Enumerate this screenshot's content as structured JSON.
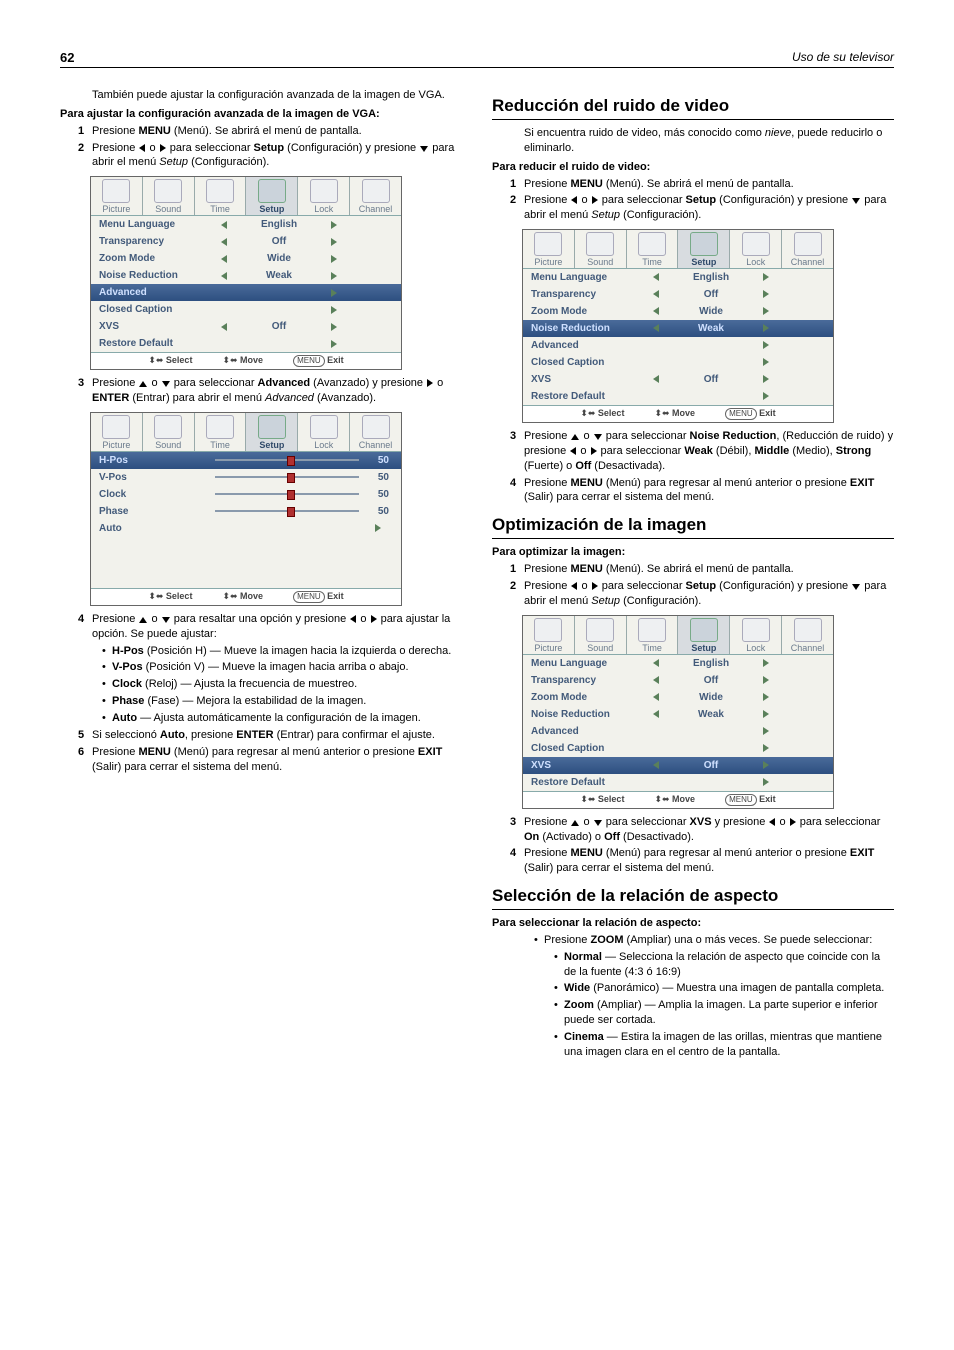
{
  "header": {
    "page_no": "62",
    "right": "Uso de su televisor"
  },
  "left": {
    "intro": "También puede ajustar la configuración avanzada de la imagen de VGA.",
    "sub": "Para ajustar la configuración avanzada de la imagen de VGA:",
    "s1": {
      "n": "1",
      "a": "Presione ",
      "b": "MENU",
      "c": " (Menú). Se abrirá el menú de pantalla."
    },
    "s2": {
      "n": "2",
      "a": "Presione ",
      "b": " o ",
      "c": " para seleccionar ",
      "d": "Setup",
      "e": " (Configuración) y presione ",
      "f": " para abrir el menú ",
      "g": "Setup",
      "h": " (Configuración)."
    },
    "s3": {
      "n": "3",
      "a": "Presione ",
      "b": " o ",
      "c": " para seleccionar ",
      "d": "Advanced",
      "e": " (Avanzado) y presione ",
      "f": " o ",
      "g": "ENTER",
      "h": " (Entrar) para abrir el menú ",
      "i": "Advanced",
      "j": " (Avanzado)."
    },
    "s4": {
      "n": "4",
      "a": "Presione ",
      "b": " o ",
      "c": " para resaltar una opción y presione ",
      "d": " o ",
      "e": " para ajustar la opción. Se puede ajustar:"
    },
    "b1": {
      "a": "H-Pos",
      "b": " (Posición H) — Mueve la imagen hacia la izquierda o derecha."
    },
    "b2": {
      "a": "V-Pos",
      "b": " (Posición V) — Mueve la imagen hacia arriba o abajo."
    },
    "b3": {
      "a": "Clock",
      "b": " (Reloj) — Ajusta la frecuencia de muestreo."
    },
    "b4": {
      "a": "Phase",
      "b": " (Fase) — Mejora la estabilidad de la imagen."
    },
    "b5": {
      "a": "Auto",
      "b": " — Ajusta automáticamente la configuración de la imagen."
    },
    "s5": {
      "n": "5",
      "a": "Si seleccionó ",
      "b": "Auto",
      "c": ", presione ",
      "d": "ENTER",
      "e": " (Entrar) para confirmar el ajuste."
    },
    "s6": {
      "n": "6",
      "a": "Presione ",
      "b": "MENU",
      "c": " (Menú) para regresar al menú anterior o presione ",
      "d": "EXIT",
      "e": " (Salir) para cerrar el sistema del menú."
    }
  },
  "right": {
    "h_noise": "Reducción del ruido de video",
    "noise_intro": {
      "a": "Si encuentra ruido de video, más conocido como ",
      "b": "nieve",
      "c": ", puede reducirlo o eliminarlo."
    },
    "noise_sub": "Para reducir el ruido de video:",
    "n1": {
      "n": "1",
      "a": "Presione ",
      "b": "MENU",
      "c": " (Menú). Se abrirá el menú de pantalla."
    },
    "n2": {
      "n": "2",
      "a": "Presione ",
      "b": " o ",
      "c": " para seleccionar ",
      "d": "Setup",
      "e": " (Configuración) y presione ",
      "f": " para abrir el menú ",
      "g": "Setup",
      "h": " (Configuración)."
    },
    "n3": {
      "n": "3",
      "a": "Presione ",
      "b": " o ",
      "c": " para seleccionar ",
      "d": "Noise Reduction",
      "e": ", (Reducción de ruido) y presione ",
      "f": " o ",
      "g": " para seleccionar ",
      "h": "Weak",
      "i": " (Débil), ",
      "j": "Middle",
      "k": " (Medio), ",
      "l": "Strong",
      "m": " (Fuerte) o ",
      "o": "Off",
      "p": " (Desactivada)."
    },
    "n4": {
      "n": "4",
      "a": "Presione ",
      "b": "MENU",
      "c": " (Menú) para regresar al menú anterior o presione ",
      "d": "EXIT",
      "e": " (Salir) para cerrar el sistema del menú."
    },
    "h_opt": "Optimización de la imagen",
    "opt_sub": "Para optimizar la imagen:",
    "o1": {
      "n": "1",
      "a": "Presione ",
      "b": "MENU",
      "c": " (Menú). Se abrirá el menú de pantalla."
    },
    "o2": {
      "n": "2",
      "a": "Presione ",
      "b": " o ",
      "c": " para seleccionar ",
      "d": "Setup",
      "e": " (Configuración) y presione ",
      "f": " para abrir el menú ",
      "g": "Setup",
      "h": " (Configuración)."
    },
    "o3": {
      "n": "3",
      "a": "Presione ",
      "b": " o ",
      "c": " para seleccionar ",
      "d": "XVS",
      "e": " y presione ",
      "f": " o ",
      "g": " para seleccionar ",
      "h": "On",
      "i": " (Activado) o ",
      "j": "Off",
      "k": " (Desactivado)."
    },
    "o4": {
      "n": "4",
      "a": "Presione ",
      "b": "MENU",
      "c": " (Menú) para regresar al menú anterior o presione ",
      "d": "EXIT",
      "e": " (Salir) para cerrar el sistema del menú."
    },
    "h_asp": "Selección de la relación de aspecto",
    "asp_sub": "Para seleccionar la relación de aspecto:",
    "asp0": {
      "a": "Presione ",
      "b": "ZOOM",
      "c": " (Ampliar) una o más veces. Se puede seleccionar:"
    },
    "a1": {
      "a": "Normal",
      "b": " — Selecciona la relación de aspecto que coincide con la de la fuente (4:3 ó 16:9)"
    },
    "a2": {
      "a": "Wide",
      "b": " (Panorámico) — Muestra una imagen de pantalla completa."
    },
    "a3": {
      "a": "Zoom",
      "b": " (Ampliar) — Amplia la imagen. La parte superior e inferior puede ser cortada."
    },
    "a4": {
      "a": "Cinema",
      "b": " — Estira la imagen de las orillas, mientras que mantiene una imagen clara en el centro de la pantalla."
    }
  },
  "osd": {
    "tabs": [
      "Picture",
      "Sound",
      "Time",
      "Setup",
      "Lock",
      "Channel"
    ],
    "setup_rows": [
      {
        "lbl": "Menu Language",
        "l": true,
        "val": "English",
        "r": true
      },
      {
        "lbl": "Transparency",
        "l": true,
        "val": "Off",
        "r": true
      },
      {
        "lbl": "Zoom Mode",
        "l": true,
        "val": "Wide",
        "r": true
      },
      {
        "lbl": "Noise Reduction",
        "l": true,
        "val": "Weak",
        "r": true
      },
      {
        "lbl": "Advanced",
        "l": false,
        "val": "",
        "r": true,
        "hl": true
      },
      {
        "lbl": "Closed Caption",
        "l": false,
        "val": "",
        "r": true
      },
      {
        "lbl": "XVS",
        "l": true,
        "val": "Off",
        "r": true
      },
      {
        "lbl": "Restore Default",
        "l": false,
        "val": "",
        "r": true
      }
    ],
    "adv_rows": [
      {
        "lbl": "H-Pos",
        "val": "50",
        "hl": true
      },
      {
        "lbl": "V-Pos",
        "val": "50"
      },
      {
        "lbl": "Clock",
        "val": "50"
      },
      {
        "lbl": "Phase",
        "val": "50"
      },
      {
        "lbl": "Auto",
        "arrow": true
      }
    ],
    "foot": {
      "select": "Select",
      "move": "Move",
      "exit": "Exit",
      "menu": "MENU"
    }
  }
}
